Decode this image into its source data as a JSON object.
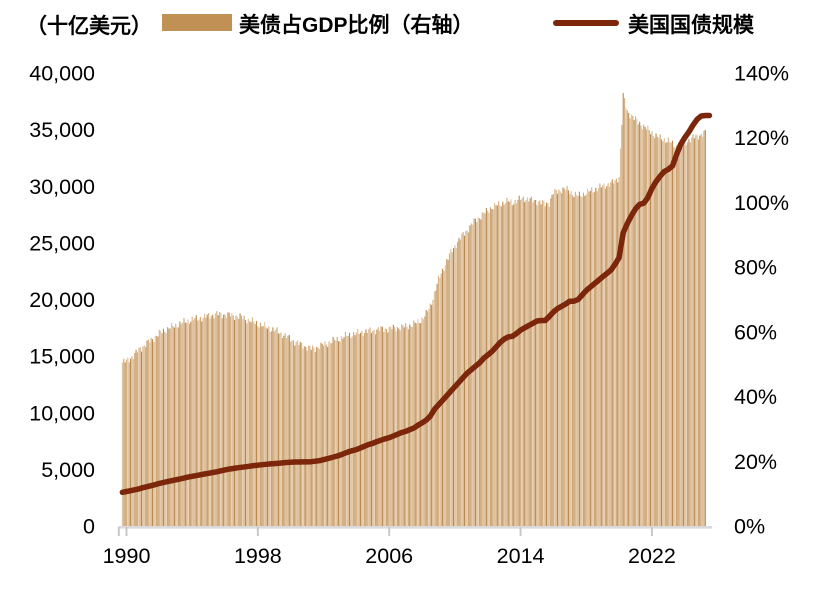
{
  "header": {
    "axis_unit_label": "（十亿美元）",
    "legend": [
      {
        "label": "美债占GDP比例（右轴）",
        "swatch": "bar",
        "color": "#C09055"
      },
      {
        "label": "美国国债规模",
        "swatch": "line",
        "color": "#7C260B"
      }
    ]
  },
  "colors": {
    "background": "#FFFFFF",
    "text": "#000000",
    "axis_line": "#DADADA",
    "tick": "#C8C8C8",
    "line": "#7C260B",
    "bar_legend": "#C09055",
    "bar_fill_palette": [
      "#DFC09A",
      "#CFA577",
      "#BA8A4E",
      "#D6B083"
    ]
  },
  "chart_data": {
    "type": "combo",
    "title": "",
    "subtitle": "",
    "grid": "off",
    "legend_position": "top",
    "left_axis": {
      "unit_label": "（十亿美元）",
      "min": 0,
      "max": 40000,
      "tick_step": 5000,
      "tick_labels": [
        "0",
        "5,000",
        "10,000",
        "15,000",
        "20,000",
        "25,000",
        "30,000",
        "35,000",
        "40,000"
      ]
    },
    "right_axis": {
      "min": 0,
      "max": 140,
      "tick_step": 20,
      "tick_labels": [
        "0%",
        "20%",
        "40%",
        "60%",
        "80%",
        "100%",
        "120%",
        "140%"
      ]
    },
    "x_axis": {
      "tick_labels": [
        "1990",
        "1998",
        "2006",
        "2014",
        "2022"
      ],
      "tick_years": [
        1990,
        1998,
        2006,
        2014,
        2022
      ],
      "start": 1989.75,
      "end": 2025.5
    },
    "series": [
      {
        "name": "美债占GDP比例（右轴）",
        "type": "bar",
        "axis": "right",
        "unit": "% of GDP",
        "x_start": 1989.75,
        "x_step": 0.25,
        "values": [
          50.5,
          51,
          52,
          53,
          54.5,
          55.5,
          56.5,
          57.5,
          58.5,
          59.5,
          60.3,
          61,
          61.5,
          62,
          62.5,
          63,
          63.4,
          63.8,
          64,
          64.3,
          64.6,
          64.9,
          65.2,
          65.5,
          65.4,
          65.4,
          65.2,
          65,
          64.8,
          64.5,
          64,
          63.5,
          63,
          62.5,
          62,
          61.5,
          61,
          60.5,
          60,
          59.3,
          58.5,
          57.8,
          57,
          56.3,
          55.8,
          55.2,
          54.8,
          55,
          55.5,
          56,
          56.5,
          57,
          57.5,
          58,
          58.5,
          59,
          59.3,
          59.5,
          59.8,
          60,
          60.2,
          60.4,
          60.6,
          60.8,
          61,
          61,
          61.2,
          61.3,
          61.5,
          61.7,
          62,
          62.3,
          63,
          64,
          65.5,
          68,
          72,
          76,
          79,
          82,
          84.5,
          86.5,
          88.5,
          90,
          91.5,
          93,
          94.5,
          95.5,
          96.5,
          97.5,
          98.5,
          99,
          99.5,
          100,
          100.3,
          100,
          100.5,
          101,
          101.3,
          101,
          100.5,
          100.5,
          100,
          99.5,
          100,
          103,
          103.5,
          104,
          104,
          103.5,
          102.5,
          102,
          102.5,
          103,
          103.5,
          104,
          104.5,
          105,
          105.5,
          105.8,
          106.5,
          108,
          133,
          128,
          127,
          125.5,
          124.5,
          123.5,
          122.5,
          121.5,
          120.5,
          119.8,
          119.5,
          119,
          118,
          117.3,
          117.8,
          118.5,
          119.3,
          120,
          120.5,
          121,
          121.5
        ]
      },
      {
        "name": "美国国债规模",
        "type": "line",
        "axis": "left",
        "unit": "十亿美元",
        "x_start": 1989.75,
        "x_step": 0.25,
        "values": [
          2980,
          3050,
          3120,
          3200,
          3280,
          3380,
          3470,
          3560,
          3660,
          3760,
          3840,
          3920,
          4000,
          4080,
          4150,
          4230,
          4320,
          4390,
          4450,
          4520,
          4590,
          4650,
          4720,
          4790,
          4870,
          4950,
          5020,
          5080,
          5140,
          5180,
          5230,
          5280,
          5330,
          5370,
          5410,
          5450,
          5480,
          5510,
          5540,
          5570,
          5610,
          5630,
          5650,
          5650,
          5660,
          5660,
          5680,
          5720,
          5770,
          5850,
          5950,
          6050,
          6150,
          6250,
          6400,
          6540,
          6650,
          6750,
          6900,
          7050,
          7200,
          7300,
          7450,
          7580,
          7700,
          7800,
          7950,
          8100,
          8250,
          8350,
          8500,
          8650,
          8900,
          9100,
          9350,
          9700,
          10300,
          10700,
          11100,
          11500,
          11900,
          12300,
          12700,
          13100,
          13500,
          13800,
          14100,
          14400,
          14800,
          15100,
          15400,
          15800,
          16200,
          16500,
          16700,
          16750,
          17000,
          17300,
          17500,
          17700,
          17900,
          18100,
          18150,
          18150,
          18500,
          18900,
          19200,
          19400,
          19600,
          19850,
          19850,
          20000,
          20400,
          20800,
          21100,
          21400,
          21700,
          22000,
          22300,
          22600,
          23100,
          23700,
          25900,
          26700,
          27400,
          28000,
          28400,
          28500,
          29000,
          29800,
          30400,
          30900,
          31300,
          31500,
          31800,
          32800,
          33700,
          34300,
          34800,
          35400,
          35900,
          36200,
          36250,
          36250
        ]
      }
    ]
  }
}
